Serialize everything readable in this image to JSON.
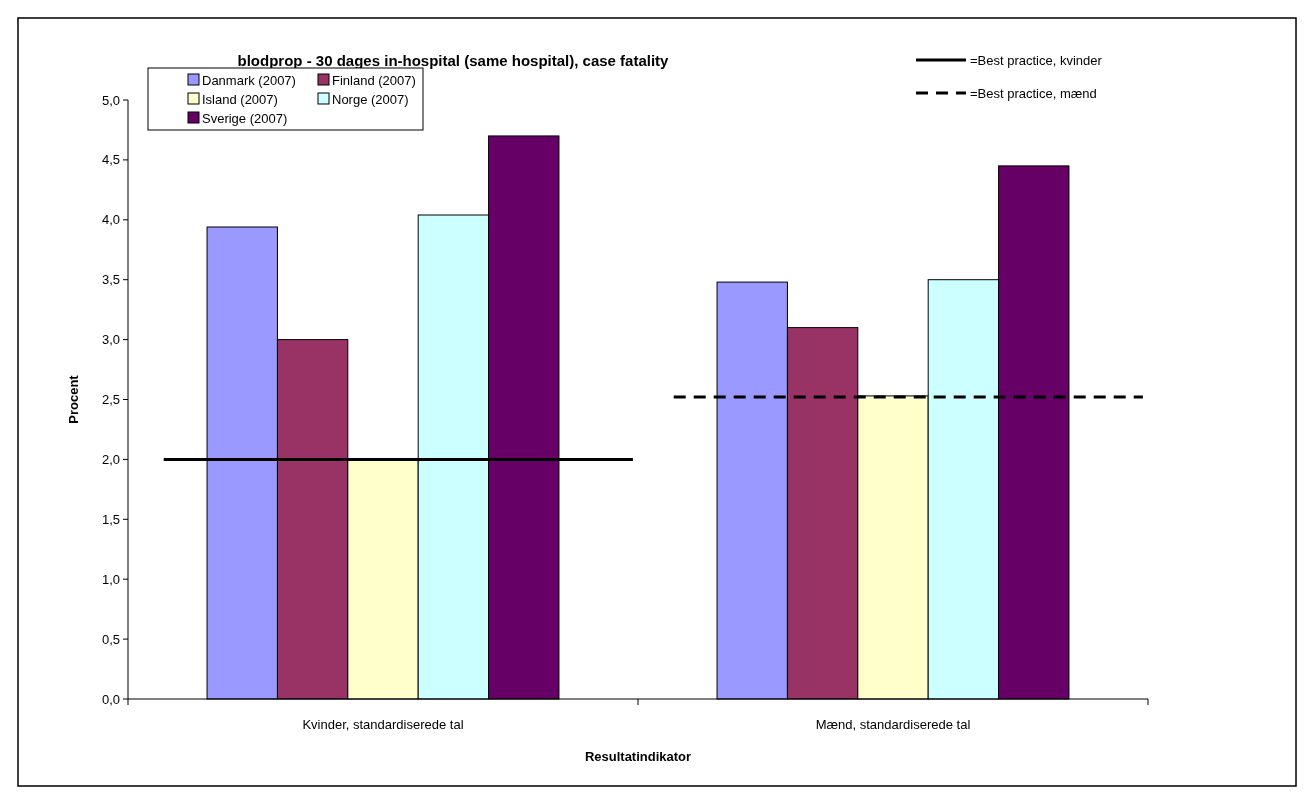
{
  "chart_data": {
    "type": "bar",
    "title": "blodprop - 30 dages in-hospital (same hospital), case fatality",
    "xlabel": "Resultatindikator",
    "ylabel": "Procent",
    "categories": [
      "Kvinder, standardiserede tal",
      "Mænd, standardiserede tal"
    ],
    "series": [
      {
        "name": "Danmark (2007)",
        "color": "#9999ff",
        "values": [
          3.94,
          3.48
        ]
      },
      {
        "name": "Finland (2007)",
        "color": "#993366",
        "values": [
          3.0,
          3.1
        ]
      },
      {
        "name": "Island (2007)",
        "color": "#ffffcc",
        "values": [
          2.0,
          2.53
        ]
      },
      {
        "name": "Norge (2007)",
        "color": "#ccffff",
        "values": [
          4.04,
          3.5
        ]
      },
      {
        "name": "Sverige (2007)",
        "color": "#660066",
        "values": [
          4.7,
          4.45
        ]
      }
    ],
    "ylim": [
      0,
      5
    ],
    "yticks": [
      {
        "value": 0,
        "label": "0,0"
      },
      {
        "value": 0.5,
        "label": "0,5"
      },
      {
        "value": 1,
        "label": "1,0"
      },
      {
        "value": 1.5,
        "label": "1,5"
      },
      {
        "value": 2,
        "label": "2,0"
      },
      {
        "value": 2.5,
        "label": "2,5"
      },
      {
        "value": 3,
        "label": "3,0"
      },
      {
        "value": 3.5,
        "label": "3,5"
      },
      {
        "value": 4,
        "label": "4,0"
      },
      {
        "value": 4.5,
        "label": "4,5"
      },
      {
        "value": 5,
        "label": "5,0"
      }
    ],
    "ref_lines": [
      {
        "axis": "y",
        "value": 2.0,
        "label": "=Best practice, kvinder",
        "color": "#000000",
        "line_style": "solid"
      },
      {
        "axis": "y",
        "value": 2.52,
        "label": "=Best practice, mænd",
        "color": "#000000",
        "line_style": "dashed"
      }
    ],
    "grid": false,
    "legend": "top left"
  }
}
